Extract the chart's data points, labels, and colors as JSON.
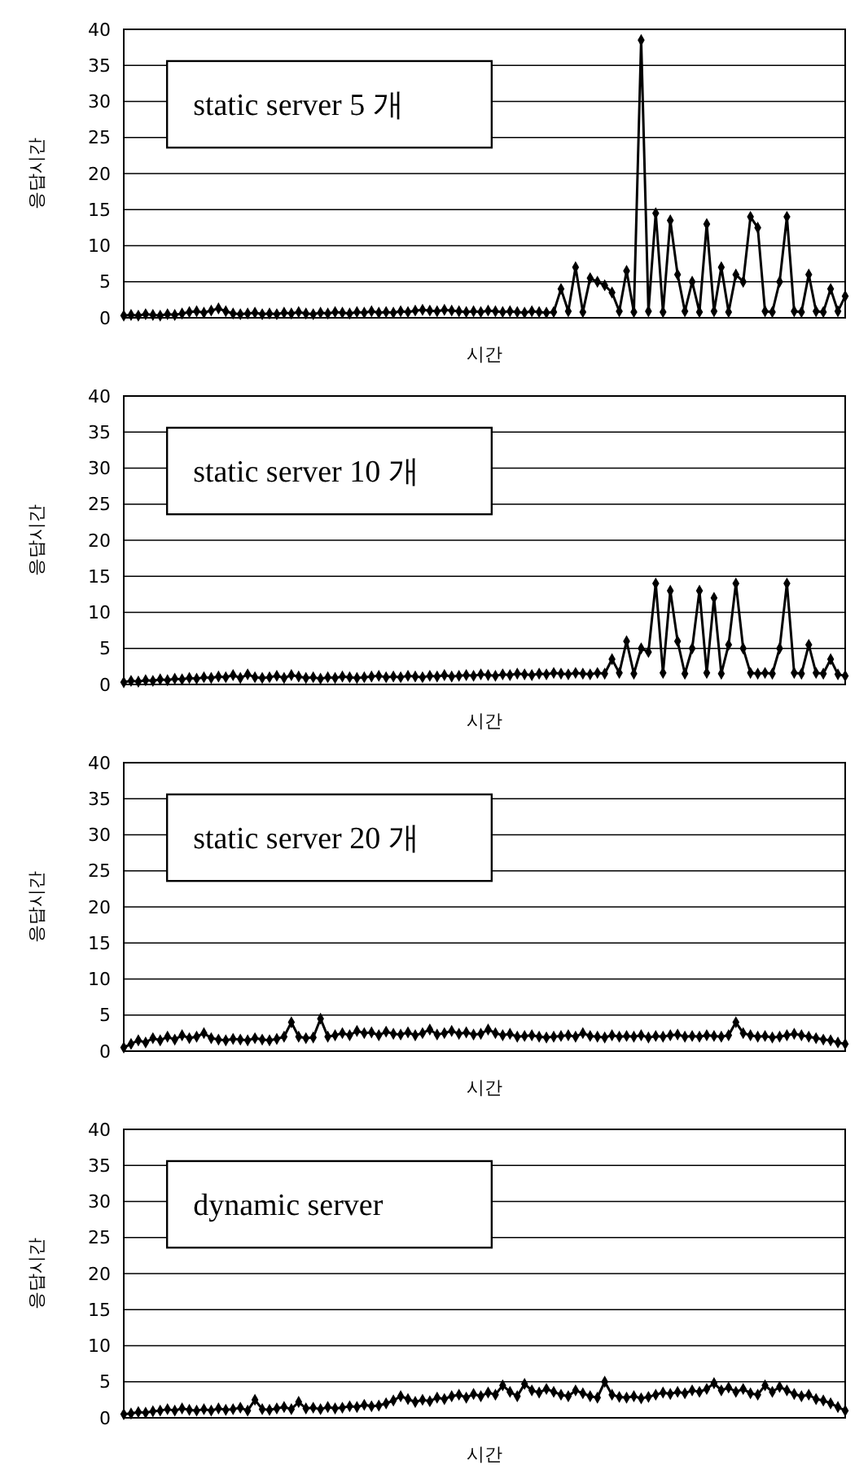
{
  "chart_data": [
    {
      "type": "line",
      "title": "static server 5 개",
      "xlabel": "시간",
      "ylabel": "응답시간",
      "color": "#000000",
      "marker": "diamond",
      "line_style": "solid",
      "grid": "y",
      "tick_labels": "y",
      "ylim": [
        0,
        40
      ],
      "yticks": [
        0,
        5,
        10,
        15,
        20,
        25,
        30,
        35,
        40
      ],
      "categories": [
        null,
        null,
        null,
        null,
        null,
        null,
        null,
        null,
        null,
        null,
        null,
        null,
        null,
        null,
        null,
        null,
        null,
        null,
        null,
        null,
        null,
        null,
        null,
        null,
        null,
        null,
        null,
        null,
        null,
        null,
        null,
        null,
        null,
        null,
        null,
        null,
        null,
        null,
        null,
        null,
        null,
        null,
        null,
        null,
        null,
        null,
        null,
        null,
        null,
        null,
        null,
        null,
        null,
        null,
        null,
        null,
        null,
        null,
        null,
        null,
        null,
        null,
        null,
        null,
        null,
        null,
        null,
        null,
        null,
        null,
        null,
        null,
        null,
        null,
        null,
        null,
        null,
        null,
        null,
        null,
        null,
        null,
        null,
        null,
        null,
        null,
        null,
        null,
        null,
        null,
        null,
        null,
        null,
        null,
        null,
        null,
        null,
        null,
        null,
        null
      ],
      "values": [
        0.3,
        0.4,
        0.3,
        0.5,
        0.4,
        0.3,
        0.5,
        0.4,
        0.6,
        0.8,
        0.9,
        0.7,
        1.0,
        1.3,
        0.9,
        0.6,
        0.5,
        0.6,
        0.7,
        0.5,
        0.6,
        0.5,
        0.7,
        0.6,
        0.8,
        0.6,
        0.5,
        0.7,
        0.6,
        0.8,
        0.7,
        0.6,
        0.8,
        0.7,
        0.9,
        0.7,
        0.8,
        0.7,
        0.9,
        0.8,
        1.0,
        1.1,
        1.0,
        0.9,
        1.1,
        1.0,
        0.9,
        0.8,
        0.9,
        0.8,
        1.0,
        0.9,
        0.8,
        0.9,
        0.8,
        0.7,
        0.9,
        0.8,
        0.7,
        0.8,
        4,
        0.9,
        7,
        0.8,
        5.5,
        5,
        4.5,
        3.5,
        0.9,
        6.5,
        0.8,
        38.5,
        0.9,
        14.5,
        0.8,
        13.5,
        6,
        0.9,
        5,
        0.8,
        13,
        0.9,
        7,
        0.8,
        6,
        5,
        14,
        12.5,
        0.9,
        0.8,
        5,
        14,
        0.9,
        0.8,
        6,
        0.9,
        0.8,
        4,
        0.9,
        3
      ]
    },
    {
      "type": "line",
      "title": "static server 10 개",
      "xlabel": "시간",
      "ylabel": "응답시간",
      "color": "#000000",
      "marker": "diamond",
      "line_style": "solid",
      "grid": "y",
      "tick_labels": "y",
      "ylim": [
        0,
        40
      ],
      "yticks": [
        0,
        5,
        10,
        15,
        20,
        25,
        30,
        35,
        40
      ],
      "categories": [
        null,
        null,
        null,
        null,
        null,
        null,
        null,
        null,
        null,
        null,
        null,
        null,
        null,
        null,
        null,
        null,
        null,
        null,
        null,
        null,
        null,
        null,
        null,
        null,
        null,
        null,
        null,
        null,
        null,
        null,
        null,
        null,
        null,
        null,
        null,
        null,
        null,
        null,
        null,
        null,
        null,
        null,
        null,
        null,
        null,
        null,
        null,
        null,
        null,
        null,
        null,
        null,
        null,
        null,
        null,
        null,
        null,
        null,
        null,
        null,
        null,
        null,
        null,
        null,
        null,
        null,
        null,
        null,
        null,
        null,
        null,
        null,
        null,
        null,
        null,
        null,
        null,
        null,
        null,
        null,
        null,
        null,
        null,
        null,
        null,
        null,
        null,
        null,
        null,
        null,
        null,
        null,
        null,
        null,
        null,
        null,
        null,
        null,
        null,
        null
      ],
      "values": [
        0.3,
        0.5,
        0.4,
        0.6,
        0.5,
        0.7,
        0.6,
        0.8,
        0.7,
        0.9,
        0.8,
        1.0,
        0.9,
        1.1,
        1.0,
        1.3,
        0.9,
        1.4,
        1.0,
        0.9,
        1.0,
        1.2,
        0.9,
        1.3,
        1.1,
        0.9,
        1.0,
        0.8,
        1.0,
        0.9,
        1.1,
        1.0,
        0.9,
        1.0,
        1.1,
        1.2,
        1.0,
        1.1,
        1.0,
        1.2,
        1.1,
        1.0,
        1.2,
        1.1,
        1.3,
        1.1,
        1.2,
        1.3,
        1.2,
        1.4,
        1.3,
        1.2,
        1.4,
        1.3,
        1.5,
        1.4,
        1.3,
        1.5,
        1.4,
        1.6,
        1.5,
        1.4,
        1.6,
        1.5,
        1.4,
        1.6,
        1.5,
        3.5,
        1.6,
        6,
        1.5,
        5,
        4.5,
        14,
        1.6,
        13,
        6,
        1.5,
        5,
        13,
        1.6,
        12,
        1.5,
        5.5,
        14,
        5,
        1.6,
        1.5,
        1.6,
        1.5,
        5,
        14,
        1.6,
        1.5,
        5.5,
        1.6,
        1.5,
        3.5,
        1.4,
        1.2
      ]
    },
    {
      "type": "line",
      "title": "static server 20 개",
      "xlabel": "시간",
      "ylabel": "응답시간",
      "color": "#000000",
      "marker": "diamond",
      "line_style": "solid",
      "grid": "y",
      "tick_labels": "y",
      "ylim": [
        0,
        40
      ],
      "yticks": [
        0,
        5,
        10,
        15,
        20,
        25,
        30,
        35,
        40
      ],
      "categories": [
        null,
        null,
        null,
        null,
        null,
        null,
        null,
        null,
        null,
        null,
        null,
        null,
        null,
        null,
        null,
        null,
        null,
        null,
        null,
        null,
        null,
        null,
        null,
        null,
        null,
        null,
        null,
        null,
        null,
        null,
        null,
        null,
        null,
        null,
        null,
        null,
        null,
        null,
        null,
        null,
        null,
        null,
        null,
        null,
        null,
        null,
        null,
        null,
        null,
        null,
        null,
        null,
        null,
        null,
        null,
        null,
        null,
        null,
        null,
        null,
        null,
        null,
        null,
        null,
        null,
        null,
        null,
        null,
        null,
        null,
        null,
        null,
        null,
        null,
        null,
        null,
        null,
        null,
        null,
        null,
        null,
        null,
        null,
        null,
        null,
        null,
        null,
        null,
        null,
        null,
        null,
        null,
        null,
        null,
        null,
        null,
        null,
        null,
        null,
        null
      ],
      "values": [
        0.5,
        1.0,
        1.5,
        1.2,
        1.8,
        1.5,
        2.0,
        1.6,
        2.2,
        1.8,
        2.0,
        2.5,
        1.8,
        1.6,
        1.5,
        1.7,
        1.6,
        1.5,
        1.8,
        1.6,
        1.5,
        1.7,
        2.0,
        4.0,
        2.0,
        1.8,
        1.9,
        4.5,
        2.0,
        2.2,
        2.5,
        2.2,
        2.8,
        2.5,
        2.6,
        2.2,
        2.7,
        2.4,
        2.3,
        2.6,
        2.2,
        2.5,
        3.0,
        2.3,
        2.5,
        2.8,
        2.4,
        2.6,
        2.3,
        2.4,
        3.0,
        2.5,
        2.2,
        2.4,
        2.0,
        2.1,
        2.2,
        2.0,
        1.9,
        2.0,
        2.1,
        2.2,
        2.0,
        2.5,
        2.1,
        2.0,
        1.9,
        2.2,
        2.0,
        2.1,
        2.0,
        2.2,
        1.9,
        2.1,
        2.0,
        2.2,
        2.3,
        2.0,
        2.1,
        2.0,
        2.2,
        2.1,
        2.0,
        2.2,
        4.0,
        2.5,
        2.2,
        2.0,
        2.1,
        1.9,
        2.0,
        2.2,
        2.4,
        2.2,
        2.0,
        1.8,
        1.6,
        1.5,
        1.2,
        1.0
      ]
    },
    {
      "type": "line",
      "title": "dynamic server",
      "xlabel": "시간",
      "ylabel": "응답시간",
      "color": "#000000",
      "marker": "diamond",
      "line_style": "solid",
      "grid": "y",
      "tick_labels": "y",
      "ylim": [
        0,
        40
      ],
      "yticks": [
        0,
        5,
        10,
        15,
        20,
        25,
        30,
        35,
        40
      ],
      "categories": [
        null,
        null,
        null,
        null,
        null,
        null,
        null,
        null,
        null,
        null,
        null,
        null,
        null,
        null,
        null,
        null,
        null,
        null,
        null,
        null,
        null,
        null,
        null,
        null,
        null,
        null,
        null,
        null,
        null,
        null,
        null,
        null,
        null,
        null,
        null,
        null,
        null,
        null,
        null,
        null,
        null,
        null,
        null,
        null,
        null,
        null,
        null,
        null,
        null,
        null,
        null,
        null,
        null,
        null,
        null,
        null,
        null,
        null,
        null,
        null,
        null,
        null,
        null,
        null,
        null,
        null,
        null,
        null,
        null,
        null,
        null,
        null,
        null,
        null,
        null,
        null,
        null,
        null,
        null,
        null,
        null,
        null,
        null,
        null,
        null,
        null,
        null,
        null,
        null,
        null,
        null,
        null,
        null,
        null,
        null,
        null,
        null,
        null,
        null,
        null
      ],
      "values": [
        0.5,
        0.6,
        0.8,
        0.7,
        0.9,
        1.0,
        1.2,
        1.0,
        1.3,
        1.1,
        1.0,
        1.2,
        1.0,
        1.3,
        1.1,
        1.2,
        1.4,
        1.0,
        2.5,
        1.2,
        1.1,
        1.3,
        1.5,
        1.2,
        2.2,
        1.3,
        1.4,
        1.2,
        1.5,
        1.3,
        1.4,
        1.6,
        1.5,
        1.8,
        1.6,
        1.7,
        2.0,
        2.4,
        3.0,
        2.6,
        2.2,
        2.5,
        2.3,
        2.8,
        2.6,
        3.0,
        3.2,
        2.8,
        3.3,
        3.0,
        3.5,
        3.2,
        4.5,
        3.6,
        3.0,
        4.7,
        3.8,
        3.5,
        4.0,
        3.6,
        3.2,
        3.0,
        3.8,
        3.4,
        3.0,
        2.8,
        5.0,
        3.2,
        2.9,
        2.8,
        3.0,
        2.7,
        2.9,
        3.2,
        3.5,
        3.3,
        3.6,
        3.4,
        3.8,
        3.6,
        4.0,
        4.8,
        3.8,
        4.2,
        3.6,
        4.0,
        3.4,
        3.2,
        4.5,
        3.6,
        4.3,
        3.8,
        3.3,
        3.0,
        3.2,
        2.6,
        2.4,
        2.0,
        1.5,
        1.0
      ]
    }
  ]
}
